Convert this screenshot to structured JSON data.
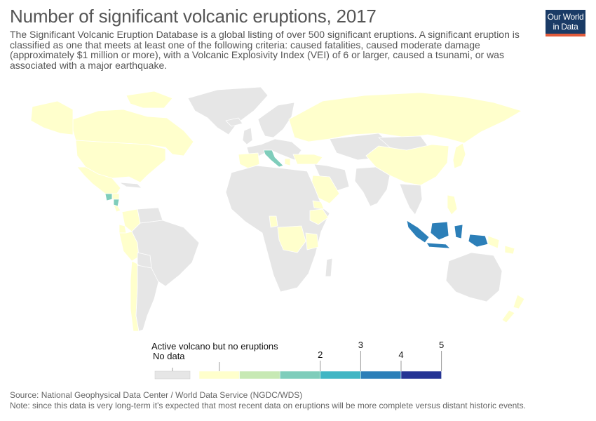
{
  "header": {
    "title": "Number of significant volcanic eruptions, 2017",
    "subtitle": "The Significant Volcanic Eruption Database is a global listing of over 500 significant eruptions. A significant eruption is classified as one that meets at least one of the following criteria: caused fatalities, caused moderate damage (approximately $1 million or more), with a Volcanic Explosivity Index (VEI) of 6 or larger, caused a tsunami, or was associated with a major earthquake."
  },
  "logo": {
    "line1": "Our World",
    "line2": "in Data"
  },
  "colors": {
    "no_data": "#e6e6e6",
    "border": "#ffffff",
    "ocean": "#ffffff",
    "active_no_eruptions": "#ffffcc",
    "bin_1_2": "#c7e9b4",
    "bin_2": "#7fcdbb",
    "bin_2_3": "#41b6c4",
    "bin_3_4": "#2c7fb8",
    "bin_4_5": "#253494",
    "logo_bg": "#1a3b66",
    "logo_bar": "#e25b3b"
  },
  "map_data": {
    "Italy": 2,
    "Indonesia": 4,
    "Papua New Guinea": 4,
    "Guatemala": 2,
    "Nicaragua": 2
  },
  "legend": {
    "categorical": [
      {
        "label": "No data",
        "color": "#e6e6e6"
      }
    ],
    "active_label": "Active volcano but no eruptions",
    "bins": [
      {
        "color": "#ffffcc"
      },
      {
        "color": "#c7e9b4"
      },
      {
        "color": "#7fcdbb",
        "label": "2"
      },
      {
        "color": "#41b6c4",
        "label": "3"
      },
      {
        "color": "#2c7fb8",
        "label": "4"
      },
      {
        "color": "#253494",
        "label": "5"
      }
    ]
  },
  "footer": {
    "source": "Source: National Geophysical Data Center / World Data Service (NGDC/WDS)",
    "note": "Note: since this data is very long-term it's expected that most recent data on eruptions will be more complete versus distant historic events."
  }
}
